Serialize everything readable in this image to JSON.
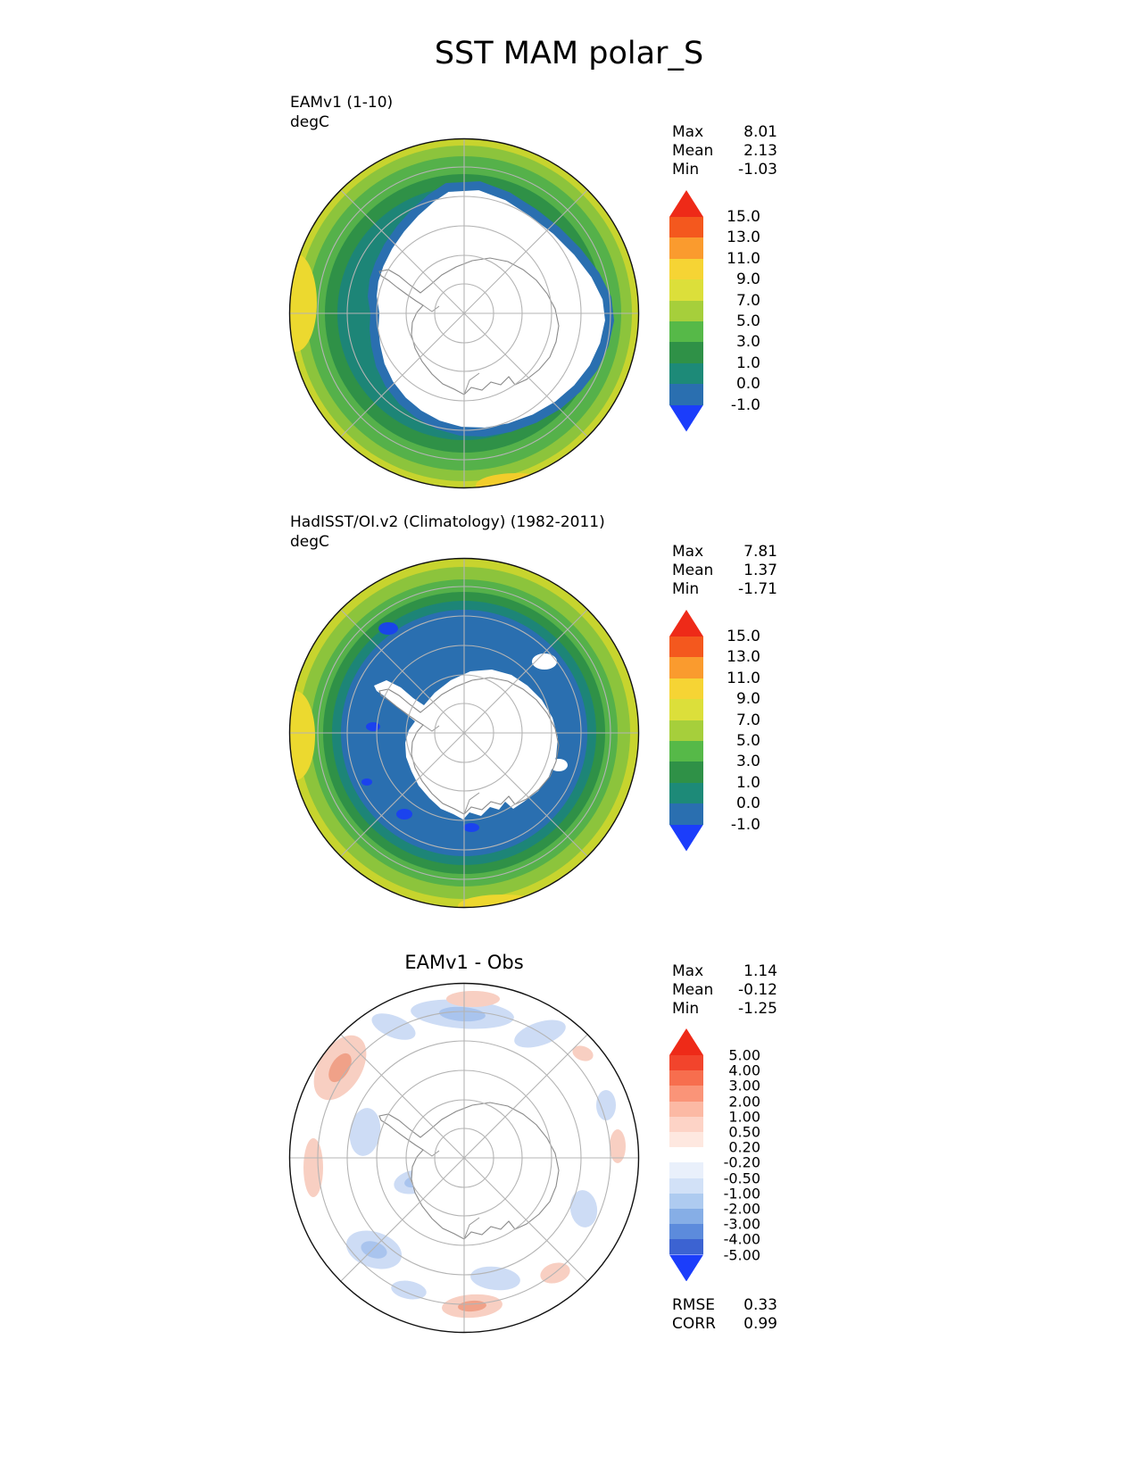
{
  "title": "SST MAM polar_S",
  "chart_data": [
    {
      "type": "heatmap",
      "map": "south-polar-stereographic",
      "label": "EAMv1 (1-10)",
      "units": "degC",
      "stats": {
        "max": {
          "label": "Max",
          "value": "8.01"
        },
        "mean": {
          "label": "Mean",
          "value": "2.13"
        },
        "min": {
          "label": "Min",
          "value": "-1.03"
        }
      },
      "colorbar": {
        "levels": [
          15.0,
          13.0,
          11.0,
          9.0,
          7.0,
          5.0,
          3.0,
          1.0,
          0.0,
          -1.0
        ],
        "labels": [
          "15.0",
          "13.0",
          "11.0",
          "9.0",
          "7.0",
          "5.0",
          "3.0",
          "1.0",
          "0.0",
          "-1.0"
        ],
        "colors": [
          "#f4581e",
          "#fa9b2e",
          "#f6d434",
          "#dcdf3a",
          "#a6cf3b",
          "#56b948",
          "#2f9147",
          "#1d8a78",
          "#2a6fb0"
        ],
        "arrow_top": "#ee2a18",
        "arrow_bottom": "#1b3dfb"
      }
    },
    {
      "type": "heatmap",
      "map": "south-polar-stereographic",
      "label": "HadISST/OI.v2 (Climatology) (1982-2011)",
      "units": "degC",
      "stats": {
        "max": {
          "label": "Max",
          "value": "7.81"
        },
        "mean": {
          "label": "Mean",
          "value": "1.37"
        },
        "min": {
          "label": "Min",
          "value": "-1.71"
        }
      },
      "colorbar": {
        "levels": [
          15.0,
          13.0,
          11.0,
          9.0,
          7.0,
          5.0,
          3.0,
          1.0,
          0.0,
          -1.0
        ],
        "labels": [
          "15.0",
          "13.0",
          "11.0",
          "9.0",
          "7.0",
          "5.0",
          "3.0",
          "1.0",
          "0.0",
          "-1.0"
        ],
        "colors": [
          "#f4581e",
          "#fa9b2e",
          "#f6d434",
          "#dcdf3a",
          "#a6cf3b",
          "#56b948",
          "#2f9147",
          "#1d8a78",
          "#2a6fb0"
        ],
        "arrow_top": "#ee2a18",
        "arrow_bottom": "#1b3dfb"
      }
    },
    {
      "type": "heatmap",
      "map": "south-polar-stereographic",
      "title": "EAMv1 - Obs",
      "stats": {
        "max": {
          "label": "Max",
          "value": "1.14"
        },
        "mean": {
          "label": "Mean",
          "value": "-0.12"
        },
        "min": {
          "label": "Min",
          "value": "-1.25"
        }
      },
      "colorbar": {
        "levels": [
          5.0,
          4.0,
          3.0,
          2.0,
          1.0,
          0.5,
          0.2,
          -0.2,
          -0.5,
          -1.0,
          -2.0,
          -3.0,
          -4.0,
          -5.0
        ],
        "labels": [
          "5.00",
          "4.00",
          "3.00",
          "2.00",
          "1.00",
          "0.50",
          "0.20",
          "-0.20",
          "-0.50",
          "-1.00",
          "-2.00",
          "-3.00",
          "-4.00",
          "-5.00"
        ],
        "colors": [
          "#f2442c",
          "#f76e4e",
          "#fa9478",
          "#fcb9a4",
          "#fdd3c6",
          "#fee8e0",
          "#ffffff",
          "#e9f0fb",
          "#d2e1f7",
          "#aecbf0",
          "#86aee6",
          "#5c8bdc",
          "#3c63d2"
        ],
        "arrow_top": "#ee2a18",
        "arrow_bottom": "#1b3dfb"
      },
      "metrics": {
        "rmse": {
          "label": "RMSE",
          "value": "0.33"
        },
        "corr": {
          "label": "CORR",
          "value": "0.99"
        }
      }
    }
  ]
}
